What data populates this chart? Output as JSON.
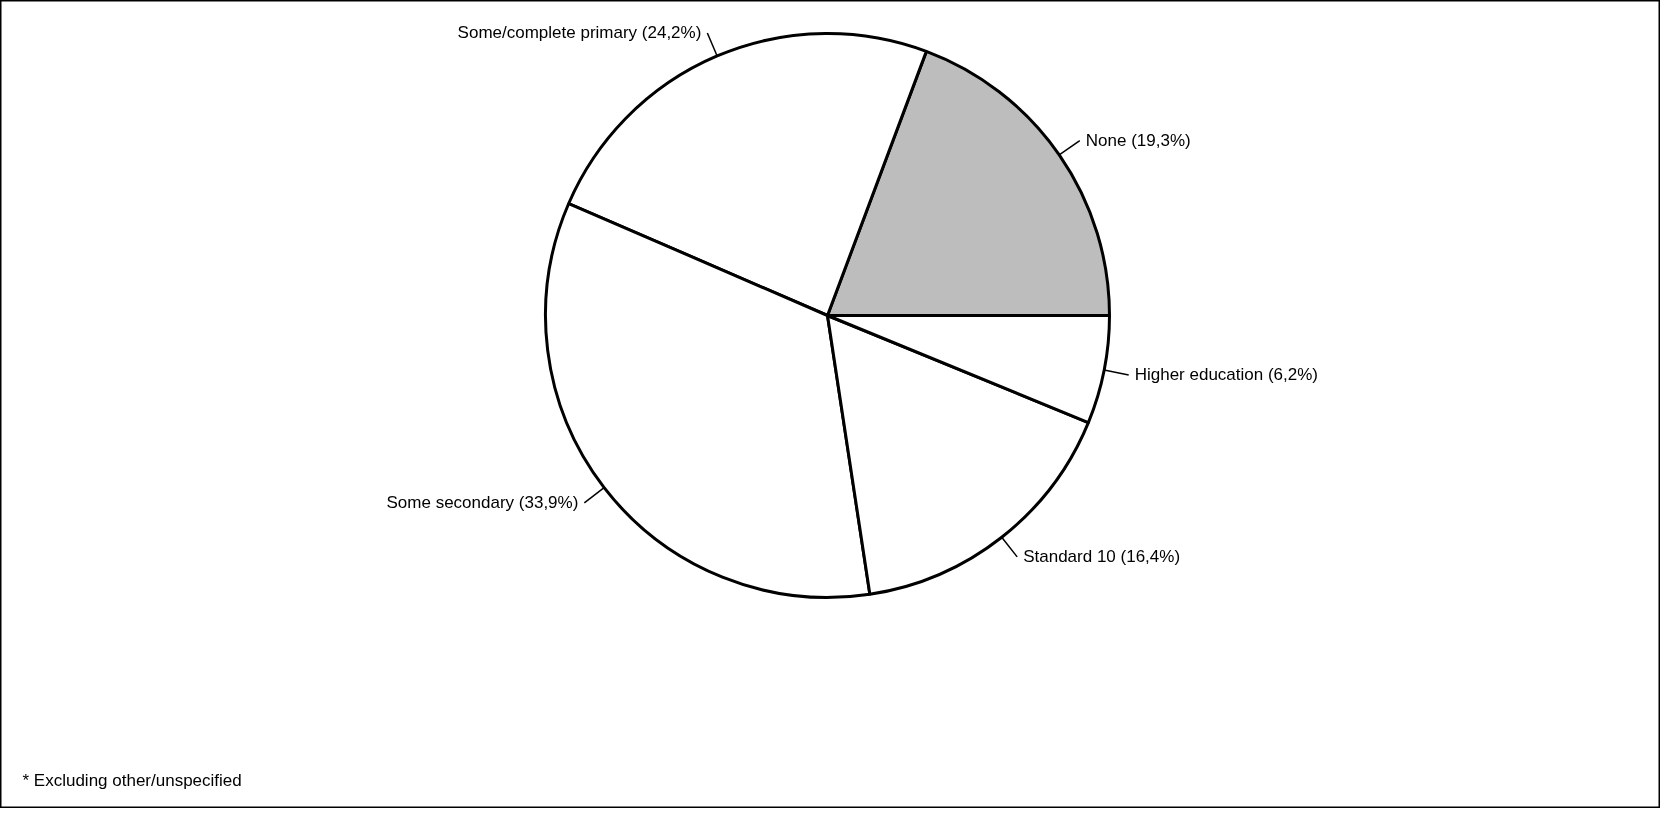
{
  "chart_data": {
    "type": "pie",
    "categories": [
      "None (19,3%)",
      "Some/complete primary (24,2%)",
      "Some secondary (33,9%)",
      "Standard 10 (16,4%)",
      "Higher education (6,2%)"
    ],
    "values": [
      19.3,
      24.2,
      33.9,
      16.4,
      6.2
    ],
    "colors": [
      "#bdbdbd",
      "#ffffff",
      "#ffffff",
      "#ffffff",
      "#ffffff"
    ],
    "annotations": [
      "* Excluding other/unspecified"
    ]
  }
}
